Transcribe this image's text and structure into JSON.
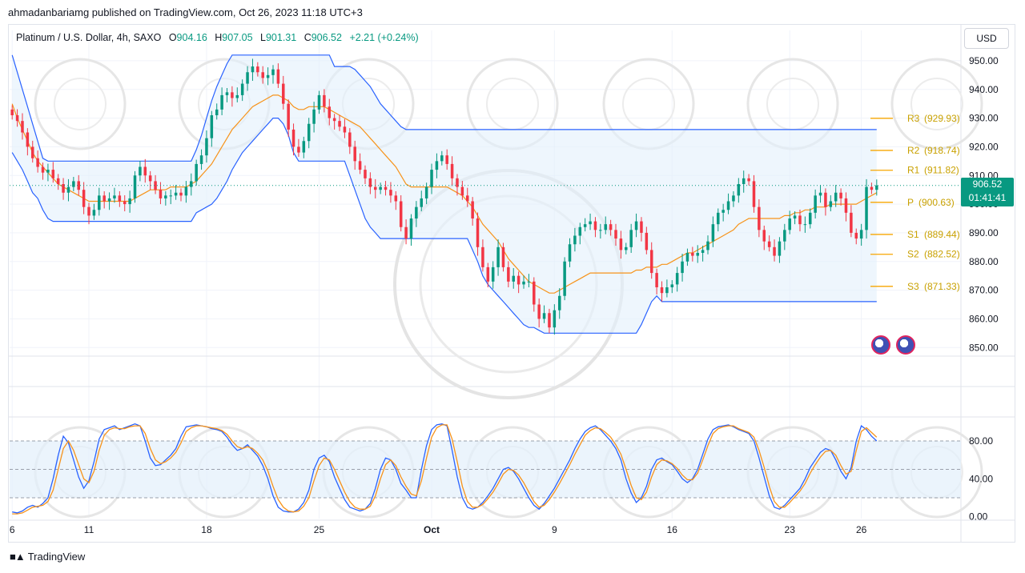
{
  "publisher_line": "ahmadanbariamg published on TradingView.com, Oct 26, 2023 11:18 UTC+3",
  "footer_brand": "TradingView",
  "currency_button": "USD",
  "legend": {
    "symbol": "Platinum / U.S. Dollar, 4h, SAXO",
    "open_label": "O",
    "open": "904.16",
    "high_label": "H",
    "high": "907.05",
    "low_label": "L",
    "low": "901.31",
    "close_label": "C",
    "close": "906.52",
    "change": "+2.21 (+0.24%)"
  },
  "price_tag": {
    "price": "906.52",
    "countdown": "01:41:41"
  },
  "colors": {
    "up": "#089981",
    "down": "#f23645",
    "donchian": "#2962ff",
    "basis": "#f7931a",
    "pivot": "#f7a600",
    "stoch_k": "#2962ff",
    "stoch_d": "#f7931a"
  },
  "chart_data": [
    {
      "type": "candlestick",
      "title": "Platinum / U.S. Dollar, 4h, SAXO",
      "x_tick_labels": [
        "6",
        "11",
        "18",
        "25",
        "Oct",
        "9",
        "16",
        "23",
        "26"
      ],
      "x_tick_index": [
        0,
        15,
        38,
        60,
        82,
        106,
        129,
        152,
        166
      ],
      "y_ticks": [
        950,
        940,
        930,
        920,
        910,
        900,
        890,
        880,
        870,
        860,
        850
      ],
      "y_tick_labels": [
        "950.00",
        "940.00",
        "930.00",
        "920.00",
        "910.00",
        "900.00",
        "890.00",
        "880.00",
        "870.00",
        "860.00",
        "850.00"
      ],
      "ylim": [
        847,
        955
      ],
      "n_bars": 170,
      "close": [
        931,
        929,
        925,
        920,
        916,
        913,
        911,
        912,
        909,
        907,
        904,
        906,
        908,
        905,
        899,
        896,
        898,
        903,
        901,
        902,
        903,
        901,
        900,
        902,
        910,
        913,
        910,
        908,
        905,
        902,
        903,
        903,
        904,
        903,
        906,
        908,
        914,
        917,
        923,
        931,
        933,
        938,
        939,
        937,
        938,
        942,
        946,
        948,
        946,
        944,
        945,
        947,
        942,
        935,
        926,
        920,
        918,
        922,
        928,
        933,
        938,
        934,
        930,
        929,
        927,
        925,
        920,
        915,
        912,
        909,
        906,
        905,
        906,
        905,
        903,
        901,
        892,
        888,
        895,
        899,
        902,
        906,
        912,
        915,
        917,
        914,
        909,
        906,
        903,
        901,
        895,
        885,
        878,
        873,
        878,
        885,
        878,
        873,
        875,
        872,
        873,
        873,
        865,
        860,
        862,
        857,
        863,
        868,
        880,
        886,
        889,
        892,
        893,
        894,
        891,
        891,
        893,
        891,
        888,
        884,
        885,
        891,
        894,
        890,
        884,
        876,
        871,
        869,
        871,
        872,
        876,
        880,
        883,
        882,
        883,
        884,
        887,
        893,
        897,
        898,
        901,
        903,
        907,
        909,
        908,
        899,
        891,
        887,
        885,
        882,
        887,
        891,
        895,
        896,
        893,
        893,
        897,
        903,
        904,
        899,
        901,
        904,
        902,
        897,
        890,
        888,
        891,
        906,
        905,
        906.52
      ],
      "donchian_upper": [
        952,
        946,
        940,
        934,
        928,
        922,
        916,
        915,
        915,
        915,
        915,
        915,
        915,
        915,
        915,
        915,
        915,
        915,
        915,
        915,
        915,
        915,
        915,
        915,
        915,
        915,
        915,
        915,
        915,
        915,
        915,
        915,
        915,
        915,
        915,
        915,
        919,
        924,
        930,
        936,
        941,
        945,
        949,
        952,
        952,
        952,
        952,
        952,
        952,
        952,
        952,
        952,
        952,
        952,
        952,
        952,
        952,
        952,
        952,
        952,
        952,
        952,
        952,
        948,
        948,
        948,
        948,
        947,
        945,
        943,
        941,
        938,
        935,
        933,
        931,
        929,
        927,
        926,
        926,
        926,
        926,
        926,
        926,
        926,
        926,
        926,
        926,
        926,
        926,
        926,
        926,
        926,
        926,
        926,
        926,
        926,
        926,
        926,
        926,
        926,
        926,
        926,
        926,
        926,
        926,
        926,
        926,
        926,
        926,
        926,
        926,
        926,
        926,
        926,
        926,
        926,
        926,
        926,
        926,
        926,
        926,
        926,
        926,
        926,
        926,
        926,
        926,
        926,
        926,
        926,
        926,
        926,
        926,
        926,
        926,
        926,
        926,
        926,
        926,
        926,
        926,
        926,
        926,
        926,
        926,
        926,
        926,
        926,
        926,
        926,
        926,
        926,
        926,
        926,
        926,
        926,
        926,
        926,
        926,
        926,
        926,
        926,
        926,
        926,
        926,
        926,
        926,
        926,
        926,
        926
      ],
      "donchian_lower": [
        918,
        915,
        912,
        908,
        904,
        902,
        898,
        895,
        894,
        894,
        894,
        894,
        894,
        894,
        894,
        894,
        894,
        894,
        894,
        894,
        894,
        894,
        894,
        894,
        894,
        894,
        894,
        894,
        894,
        894,
        894,
        894,
        894,
        894,
        894,
        894,
        897,
        898,
        899,
        900,
        902,
        905,
        908,
        912,
        915,
        918,
        920,
        922,
        924,
        926,
        928,
        930,
        930,
        928,
        924,
        918,
        915,
        915,
        915,
        915,
        915,
        915,
        915,
        915,
        915,
        915,
        910,
        905,
        900,
        895,
        892,
        890,
        888,
        888,
        888,
        888,
        888,
        888,
        888,
        888,
        888,
        888,
        888,
        888,
        888,
        888,
        888,
        888,
        888,
        888,
        884,
        880,
        875,
        872,
        870,
        868,
        866,
        864,
        862,
        860,
        858,
        857,
        857,
        856,
        855,
        855,
        855,
        855,
        855,
        855,
        855,
        855,
        855,
        855,
        855,
        855,
        855,
        855,
        855,
        855,
        855,
        855,
        855,
        858,
        862,
        866,
        868,
        866,
        866,
        866,
        866,
        866,
        866,
        866,
        866,
        866,
        866,
        866,
        866,
        866,
        866,
        866,
        866,
        866,
        866,
        866,
        866,
        866,
        866,
        866,
        866,
        866,
        866,
        866,
        866,
        866,
        866,
        866,
        866,
        866,
        866,
        866,
        866,
        866,
        866,
        866,
        866,
        866,
        866,
        866
      ],
      "basis": [
        935,
        930,
        926,
        922,
        918,
        915,
        913,
        911,
        909,
        907,
        906,
        905,
        904,
        903,
        902,
        901,
        901,
        901,
        901,
        901,
        901,
        901,
        901,
        901,
        902,
        903,
        904,
        905,
        905,
        905,
        905,
        906,
        906,
        906,
        906,
        907,
        908,
        910,
        912,
        914,
        917,
        920,
        923,
        926,
        928,
        930,
        932,
        934,
        935,
        936,
        937,
        938,
        938,
        937,
        936,
        934,
        933,
        933,
        934,
        934,
        934,
        934,
        933,
        932,
        931,
        930,
        929,
        928,
        927,
        925,
        923,
        921,
        919,
        917,
        915,
        913,
        910,
        907,
        906,
        906,
        906,
        906,
        906,
        906,
        906,
        906,
        905,
        904,
        903,
        901,
        899,
        896,
        893,
        891,
        889,
        887,
        884,
        881,
        879,
        877,
        875,
        873,
        872,
        871,
        870,
        869,
        869,
        870,
        871,
        872,
        873,
        874,
        875,
        876,
        876,
        876,
        876,
        876,
        876,
        876,
        876,
        876,
        877,
        877,
        878,
        878,
        878,
        879,
        879,
        880,
        881,
        882,
        883,
        883,
        884,
        885,
        886,
        887,
        888,
        889,
        890,
        891,
        893,
        894,
        895,
        895,
        895,
        895,
        895,
        895,
        895,
        896,
        896,
        897,
        897,
        898,
        898,
        899,
        899,
        899,
        900,
        900,
        900,
        900,
        900,
        900,
        901,
        902,
        903,
        904
      ],
      "pivot_levels": [
        {
          "label": "R3",
          "value": "(929.93)",
          "level": 929.93
        },
        {
          "label": "R2",
          "value": "(918.74)",
          "level": 918.74
        },
        {
          "label": "R1",
          "value": "(911.82)",
          "level": 911.82
        },
        {
          "label": "P",
          "value": "(900.63)",
          "level": 900.63
        },
        {
          "label": "S1",
          "value": "(889.44)",
          "level": 889.44
        },
        {
          "label": "S2",
          "value": "(882.52)",
          "level": 882.52
        },
        {
          "label": "S3",
          "value": "(871.33)",
          "level": 871.33
        }
      ],
      "last_price": 906.52
    },
    {
      "type": "line",
      "title": "",
      "y_ticks": [
        80,
        40,
        0
      ],
      "y_tick_labels": [
        "80.00",
        "40.00",
        "0.00"
      ],
      "ylim": [
        -2,
        102
      ],
      "band": [
        20,
        80
      ],
      "series": [
        {
          "values": [
            5,
            4,
            6,
            10,
            12,
            10,
            14,
            20,
            40,
            65,
            85,
            78,
            60,
            42,
            30,
            38,
            58,
            82,
            92,
            94,
            96,
            92,
            94,
            96,
            98,
            96,
            80,
            62,
            54,
            55,
            60,
            65,
            72,
            85,
            95,
            96,
            97,
            96,
            95,
            93,
            92,
            90,
            84,
            76,
            70,
            72,
            76,
            70,
            64,
            54,
            40,
            22,
            10,
            6,
            5,
            5,
            8,
            15,
            28,
            50,
            62,
            65,
            58,
            42,
            30,
            18,
            10,
            8,
            6,
            8,
            14,
            30,
            50,
            62,
            60,
            50,
            35,
            28,
            20,
            20,
            50,
            75,
            92,
            97,
            98,
            96,
            70,
            42,
            20,
            10,
            8,
            10,
            15,
            22,
            30,
            40,
            50,
            52,
            48,
            40,
            30,
            20,
            12,
            8,
            14,
            22,
            30,
            40,
            50,
            60,
            72,
            82,
            90,
            94,
            96,
            92,
            86,
            80,
            72,
            60,
            40,
            25,
            15,
            20,
            32,
            50,
            60,
            62,
            58,
            55,
            48,
            40,
            36,
            40,
            50,
            66,
            82,
            92,
            95,
            96,
            97,
            95,
            92,
            90,
            88,
            80,
            62,
            42,
            22,
            10,
            8,
            12,
            18,
            24,
            30,
            40,
            52,
            60,
            68,
            72,
            70,
            60,
            48,
            40,
            52,
            80,
            96,
            92,
            85,
            80
          ]
        },
        {
          "values": [
            3,
            3,
            4,
            7,
            10,
            11,
            12,
            16,
            28,
            50,
            72,
            80,
            70,
            55,
            40,
            36,
            48,
            70,
            86,
            92,
            94,
            93,
            93,
            95,
            96,
            96,
            88,
            72,
            60,
            56,
            58,
            62,
            68,
            78,
            90,
            94,
            96,
            96,
            95,
            94,
            93,
            91,
            87,
            80,
            74,
            72,
            74,
            72,
            67,
            60,
            48,
            32,
            18,
            10,
            6,
            5,
            6,
            11,
            20,
            38,
            54,
            62,
            60,
            50,
            38,
            26,
            16,
            10,
            8,
            8,
            11,
            22,
            40,
            55,
            60,
            54,
            42,
            32,
            24,
            22,
            38,
            62,
            84,
            94,
            97,
            97,
            82,
            58,
            32,
            16,
            10,
            10,
            13,
            19,
            26,
            35,
            45,
            50,
            49,
            44,
            36,
            26,
            16,
            10,
            12,
            18,
            26,
            35,
            45,
            55,
            66,
            76,
            86,
            91,
            94,
            93,
            89,
            84,
            76,
            66,
            50,
            33,
            20,
            18,
            26,
            42,
            55,
            60,
            59,
            56,
            51,
            44,
            39,
            39,
            46,
            60,
            75,
            88,
            93,
            95,
            96,
            96,
            93,
            91,
            89,
            84,
            70,
            52,
            32,
            16,
            10,
            10,
            15,
            21,
            27,
            35,
            46,
            55,
            63,
            69,
            70,
            65,
            54,
            45,
            48,
            70,
            90,
            94,
            89,
            84
          ]
        }
      ]
    }
  ]
}
